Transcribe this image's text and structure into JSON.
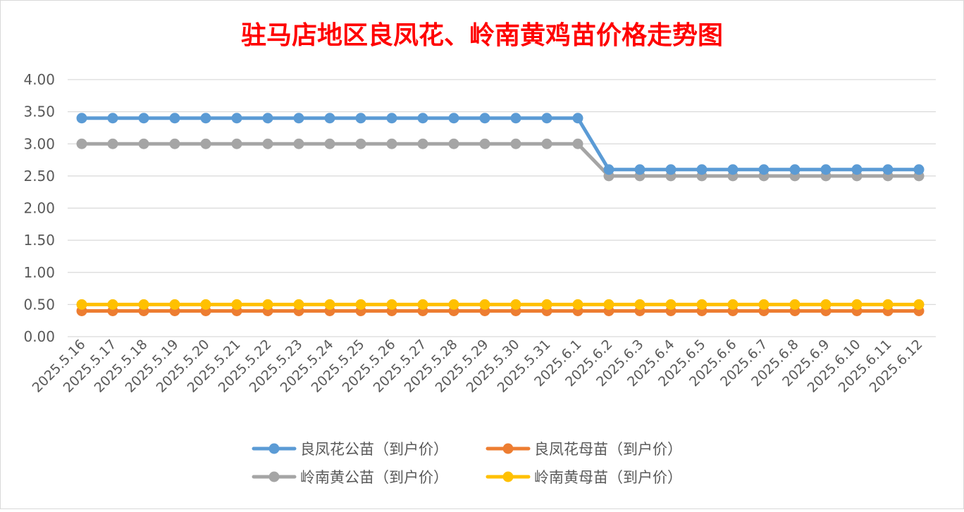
{
  "chart_data": {
    "type": "line",
    "title": "驻马店地区良凤花、岭南黄鸡苗价格走势图",
    "title_color": "#ff0000",
    "xlabel": "",
    "ylabel": "",
    "ylim": [
      0,
      4
    ],
    "y_ticks": [
      "0.00",
      "0.50",
      "1.00",
      "1.50",
      "2.00",
      "2.50",
      "3.00",
      "3.50",
      "4.00"
    ],
    "grid": true,
    "legend_position": "bottom",
    "x": [
      "2025.5.16",
      "2025.5.17",
      "2025.5.18",
      "2025.5.19",
      "2025.5.20",
      "2025.5.21",
      "2025.5.22",
      "2025.5.23",
      "2025.5.24",
      "2025.5.25",
      "2025.5.26",
      "2025.5.27",
      "2025.5.28",
      "2025.5.29",
      "2025.5.30",
      "2025.5.31",
      "2025.6.1",
      "2025.6.2",
      "2025.6.3",
      "2025.6.4",
      "2025.6.5",
      "2025.6.6",
      "2025.6.7",
      "2025.6.8",
      "2025.6.9",
      "2025.6.10",
      "2025.6.11",
      "2025.6.12"
    ],
    "series": [
      {
        "name": "良凤花公苗（到户价）",
        "color": "#5b9bd5",
        "values": [
          3.4,
          3.4,
          3.4,
          3.4,
          3.4,
          3.4,
          3.4,
          3.4,
          3.4,
          3.4,
          3.4,
          3.4,
          3.4,
          3.4,
          3.4,
          3.4,
          3.4,
          2.6,
          2.6,
          2.6,
          2.6,
          2.6,
          2.6,
          2.6,
          2.6,
          2.6,
          2.6,
          2.6
        ]
      },
      {
        "name": "良凤花母苗（到户价）",
        "color": "#ed7d31",
        "values": [
          0.4,
          0.4,
          0.4,
          0.4,
          0.4,
          0.4,
          0.4,
          0.4,
          0.4,
          0.4,
          0.4,
          0.4,
          0.4,
          0.4,
          0.4,
          0.4,
          0.4,
          0.4,
          0.4,
          0.4,
          0.4,
          0.4,
          0.4,
          0.4,
          0.4,
          0.4,
          0.4,
          0.4
        ]
      },
      {
        "name": "岭南黄公苗（到户价）",
        "color": "#a5a5a5",
        "values": [
          3.0,
          3.0,
          3.0,
          3.0,
          3.0,
          3.0,
          3.0,
          3.0,
          3.0,
          3.0,
          3.0,
          3.0,
          3.0,
          3.0,
          3.0,
          3.0,
          3.0,
          2.5,
          2.5,
          2.5,
          2.5,
          2.5,
          2.5,
          2.5,
          2.5,
          2.5,
          2.5,
          2.5
        ]
      },
      {
        "name": "岭南黄母苗（到户价）",
        "color": "#ffc000",
        "values": [
          0.5,
          0.5,
          0.5,
          0.5,
          0.5,
          0.5,
          0.5,
          0.5,
          0.5,
          0.5,
          0.5,
          0.5,
          0.5,
          0.5,
          0.5,
          0.5,
          0.5,
          0.5,
          0.5,
          0.5,
          0.5,
          0.5,
          0.5,
          0.5,
          0.5,
          0.5,
          0.5,
          0.5
        ]
      }
    ]
  }
}
